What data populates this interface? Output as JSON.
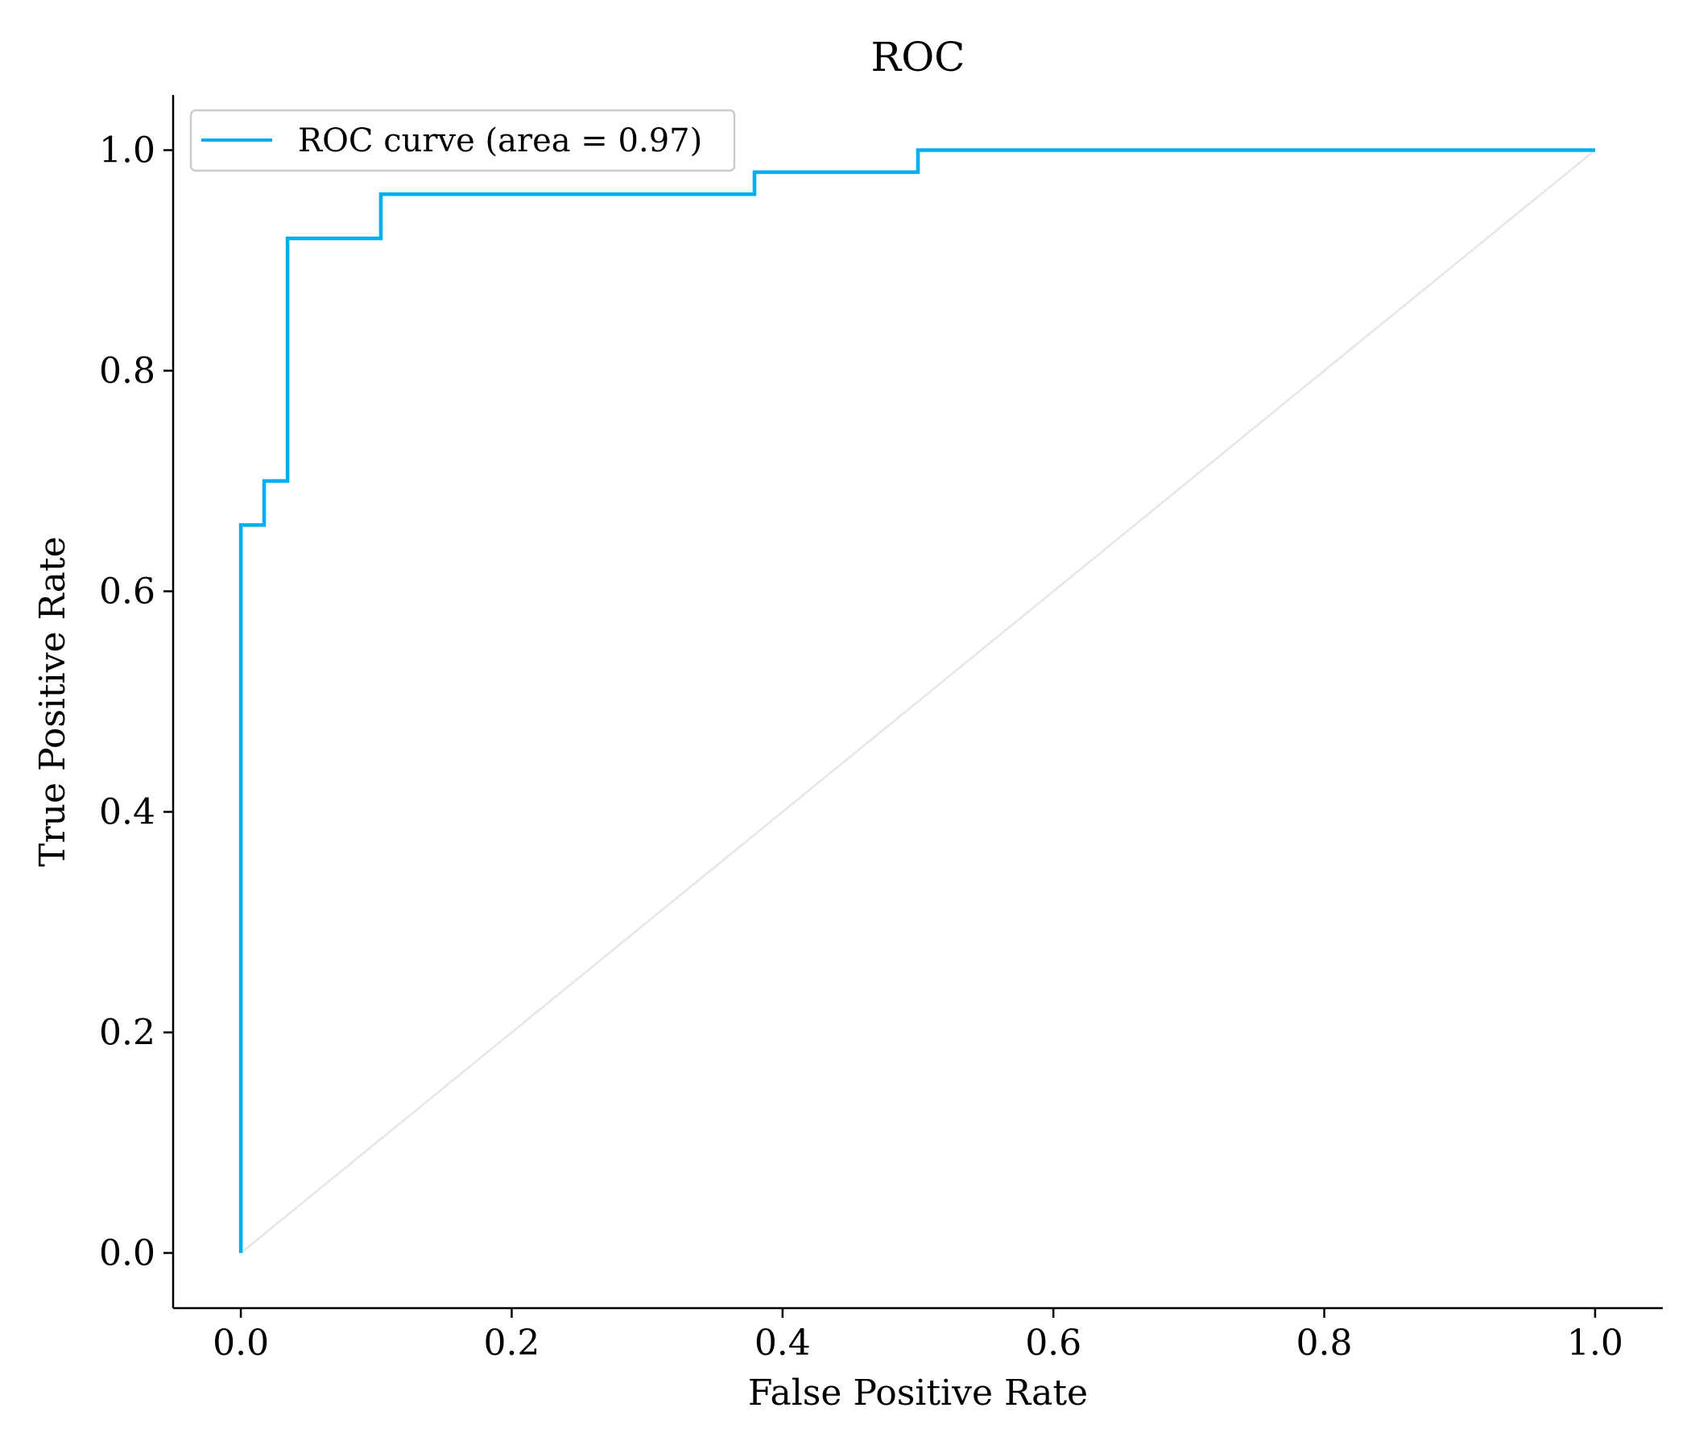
{
  "chart_data": {
    "type": "line",
    "title": "ROC",
    "xlabel": "False Positive Rate",
    "ylabel": "True Positive Rate",
    "xlim": [
      -0.05,
      1.05
    ],
    "ylim": [
      -0.05,
      1.05
    ],
    "xticks": [
      0.0,
      0.2,
      0.4,
      0.6,
      0.8,
      1.0
    ],
    "xtick_labels": [
      "0.0",
      "0.2",
      "0.4",
      "0.6",
      "0.8",
      "1.0"
    ],
    "yticks": [
      0.0,
      0.2,
      0.4,
      0.6,
      0.8,
      1.0
    ],
    "ytick_labels": [
      "0.0",
      "0.2",
      "0.4",
      "0.6",
      "0.8",
      "1.0"
    ],
    "grid": false,
    "legend_position": "upper-left",
    "series": [
      {
        "name": "ROC curve (area = 0.97)",
        "color": "#00aeef",
        "step": true,
        "x": [
          0.0,
          0.0,
          0.0172,
          0.0172,
          0.0345,
          0.0345,
          0.1034,
          0.1034,
          0.3793,
          0.3793,
          0.5,
          0.5,
          1.0
        ],
        "y": [
          0.0,
          0.66,
          0.66,
          0.7,
          0.7,
          0.92,
          0.92,
          0.96,
          0.96,
          0.98,
          0.98,
          1.0,
          1.0
        ]
      }
    ],
    "reference_line": {
      "x": [
        0.0,
        1.0
      ],
      "y": [
        0.0,
        1.0
      ],
      "color": "#e6e6e6"
    }
  }
}
